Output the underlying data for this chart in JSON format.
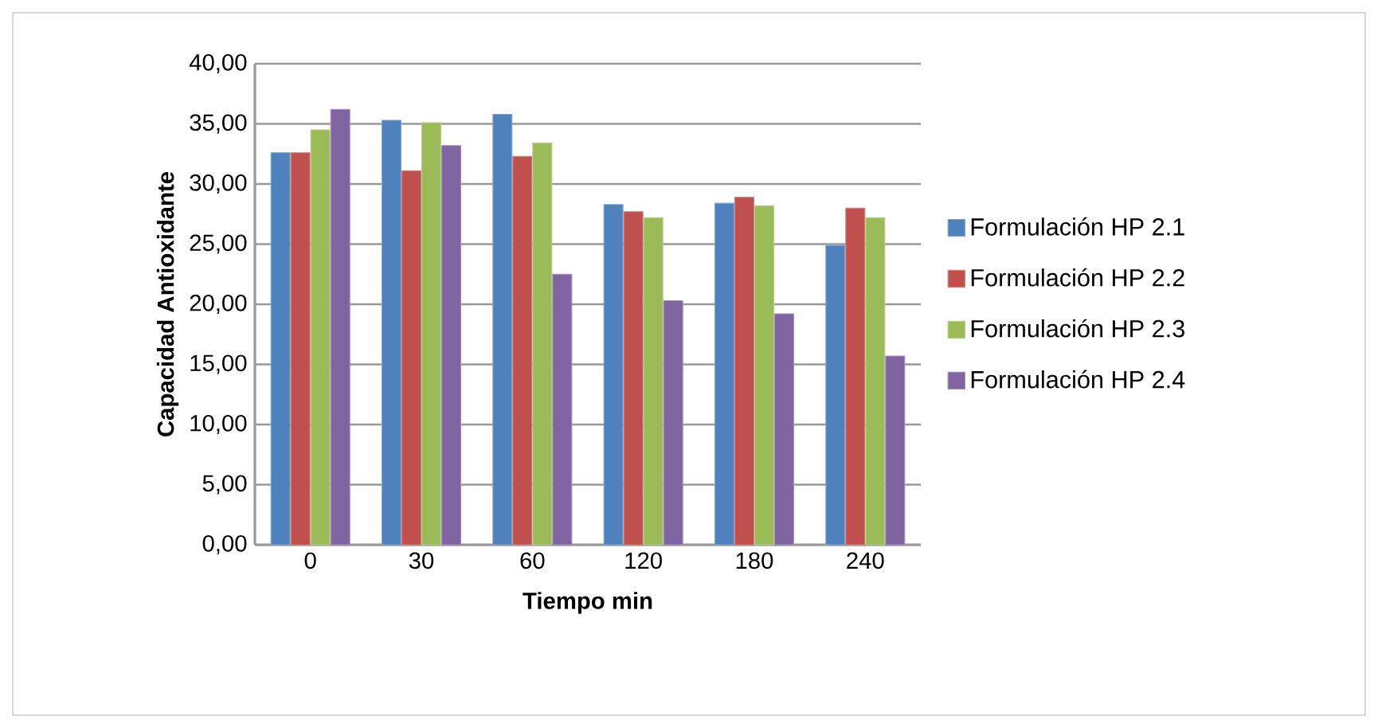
{
  "chart_data": {
    "type": "bar",
    "xlabel": "Tiempo min",
    "ylabel": "Capacidad Antioxidante",
    "categories": [
      "0",
      "30",
      "60",
      "120",
      "180",
      "240"
    ],
    "series": [
      {
        "name": "Formulación HP 2.1",
        "color": "#4f81bd",
        "values": [
          32.6,
          35.3,
          35.8,
          28.3,
          28.4,
          24.9
        ]
      },
      {
        "name": "Formulación HP 2.2",
        "color": "#c0504d",
        "values": [
          32.6,
          31.1,
          32.3,
          27.7,
          28.9,
          28.0
        ]
      },
      {
        "name": "Formulación HP 2.3",
        "color": "#9bbb59",
        "values": [
          34.5,
          35.1,
          33.4,
          27.2,
          28.2,
          27.2
        ]
      },
      {
        "name": "Formulación HP 2.4",
        "color": "#8064a2",
        "values": [
          36.2,
          33.2,
          22.5,
          20.3,
          19.2,
          15.7
        ]
      }
    ],
    "ylim": [
      0,
      40
    ],
    "yticks": [
      {
        "value": 0,
        "label": "0,00"
      },
      {
        "value": 5,
        "label": "5,00"
      },
      {
        "value": 10,
        "label": "10,00"
      },
      {
        "value": 15,
        "label": "15,00"
      },
      {
        "value": 20,
        "label": "20,00"
      },
      {
        "value": 25,
        "label": "25,00"
      },
      {
        "value": 30,
        "label": "30,00"
      },
      {
        "value": 35,
        "label": "35,00"
      },
      {
        "value": 40,
        "label": "40,00"
      }
    ],
    "grid": "y",
    "legend": "right"
  }
}
